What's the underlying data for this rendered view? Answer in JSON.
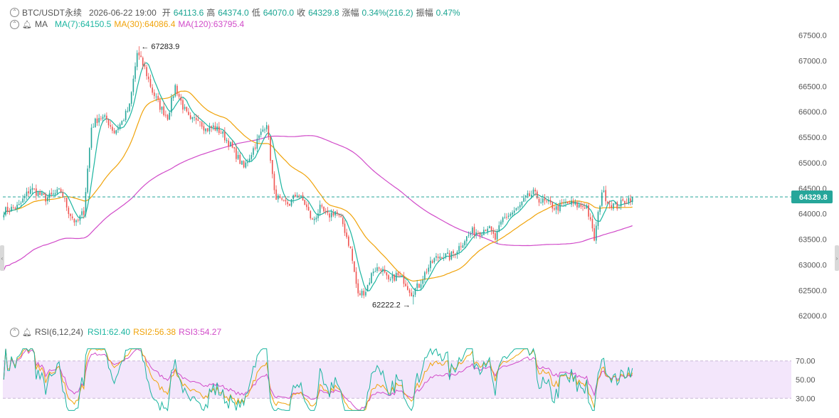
{
  "header": {
    "symbol": "BTC/USDT永续",
    "datetime": "2026-06-22 19:00",
    "open_label": "开",
    "open": "64113.6",
    "high_label": "高",
    "high": "64374.0",
    "low_label": "低",
    "low": "64070.0",
    "close_label": "收",
    "close": "64329.8",
    "change_label": "涨幅",
    "change": "0.34%(216.2)",
    "amp_label": "振幅",
    "amp": "0.47%"
  },
  "ma_legend": {
    "name": "MA",
    "ma7": "MA(7):64150.5",
    "ma30": "MA(30):64086.4",
    "ma120": "MA(120):63795.4"
  },
  "rsi_legend": {
    "name": "RSI(6,12,24)",
    "rsi1": "RSI1:62.40",
    "rsi2": "RSI2:56.38",
    "rsi3": "RSI3:54.27"
  },
  "colors": {
    "up": "#26a69a",
    "down": "#ef5350",
    "ma7": "#1bb5a0",
    "ma30": "#f0a30a",
    "ma120": "#d14bc9",
    "rsi1": "#1bb5a0",
    "rsi2": "#f0a30a",
    "rsi3": "#d14bc9",
    "rsi_band": "#f3e6fb",
    "price_tag": "#26a69a"
  },
  "chart_data": [
    {
      "type": "candlestick",
      "title": "BTC/USDT永续",
      "y_ticks": [
        62000,
        62500,
        63000,
        63500,
        64000,
        64500,
        65000,
        65500,
        66000,
        66500,
        67000,
        67500
      ],
      "y_tick_labels": [
        "62000.0",
        "62500.0",
        "63000.0",
        "63500.0",
        "64000.0",
        "64500.0",
        "65000.0",
        "65500.0",
        "66000.0",
        "66500.0",
        "67000.0",
        "67500.0"
      ],
      "ylim": [
        61850,
        67800
      ],
      "last_price": 64329.8,
      "last_price_label": "64329.8",
      "annotations": [
        {
          "text": "67283.9",
          "value": 67283.9,
          "at": "high"
        },
        {
          "text": "62222.2",
          "value": 62222.2,
          "at": "low"
        }
      ],
      "anchors": [
        [
          0,
          64050
        ],
        [
          8,
          64150
        ],
        [
          14,
          64500
        ],
        [
          22,
          64300
        ],
        [
          30,
          64450
        ],
        [
          34,
          64050
        ],
        [
          38,
          63800
        ],
        [
          42,
          64050
        ],
        [
          46,
          65700
        ],
        [
          50,
          65900
        ],
        [
          54,
          65850
        ],
        [
          58,
          65600
        ],
        [
          62,
          65800
        ],
        [
          66,
          66100
        ],
        [
          70,
          67150
        ],
        [
          74,
          66850
        ],
        [
          78,
          66400
        ],
        [
          82,
          66100
        ],
        [
          86,
          65900
        ],
        [
          90,
          66500
        ],
        [
          94,
          66100
        ],
        [
          98,
          65800
        ],
        [
          102,
          65900
        ],
        [
          106,
          65650
        ],
        [
          110,
          65700
        ],
        [
          114,
          65600
        ],
        [
          118,
          65400
        ],
        [
          122,
          65150
        ],
        [
          126,
          64900
        ],
        [
          130,
          65200
        ],
        [
          134,
          65500
        ],
        [
          138,
          65800
        ],
        [
          142,
          64400
        ],
        [
          146,
          64200
        ],
        [
          150,
          64200
        ],
        [
          154,
          64400
        ],
        [
          158,
          64200
        ],
        [
          162,
          63850
        ],
        [
          166,
          64100
        ],
        [
          170,
          63950
        ],
        [
          174,
          64050
        ],
        [
          178,
          63800
        ],
        [
          182,
          63300
        ],
        [
          186,
          62400
        ],
        [
          190,
          62500
        ],
        [
          194,
          62900
        ],
        [
          198,
          62950
        ],
        [
          202,
          62650
        ],
        [
          206,
          62800
        ],
        [
          210,
          62700
        ],
        [
          214,
          62450
        ],
        [
          218,
          62600
        ],
        [
          222,
          62900
        ],
        [
          226,
          63100
        ],
        [
          230,
          63200
        ],
        [
          234,
          63150
        ],
        [
          238,
          63300
        ],
        [
          242,
          63500
        ],
        [
          246,
          63650
        ],
        [
          250,
          63650
        ],
        [
          254,
          63750
        ],
        [
          258,
          63500
        ],
        [
          262,
          63900
        ],
        [
          266,
          64000
        ],
        [
          270,
          64100
        ],
        [
          274,
          64300
        ],
        [
          278,
          64400
        ],
        [
          282,
          64250
        ],
        [
          286,
          64200
        ],
        [
          290,
          64100
        ],
        [
          294,
          64200
        ],
        [
          298,
          64200
        ],
        [
          302,
          64150
        ],
        [
          306,
          64150
        ],
        [
          310,
          63500
        ],
        [
          314,
          64450
        ],
        [
          318,
          64200
        ],
        [
          322,
          64150
        ],
        [
          326,
          64250
        ],
        [
          330,
          64330
        ]
      ],
      "rsi": {
        "ylim": [
          15,
          85
        ],
        "band": [
          30,
          70
        ],
        "y_ticks": [
          30,
          50,
          70
        ],
        "y_tick_labels": [
          "30.00",
          "50.00",
          "70.00"
        ]
      }
    }
  ]
}
